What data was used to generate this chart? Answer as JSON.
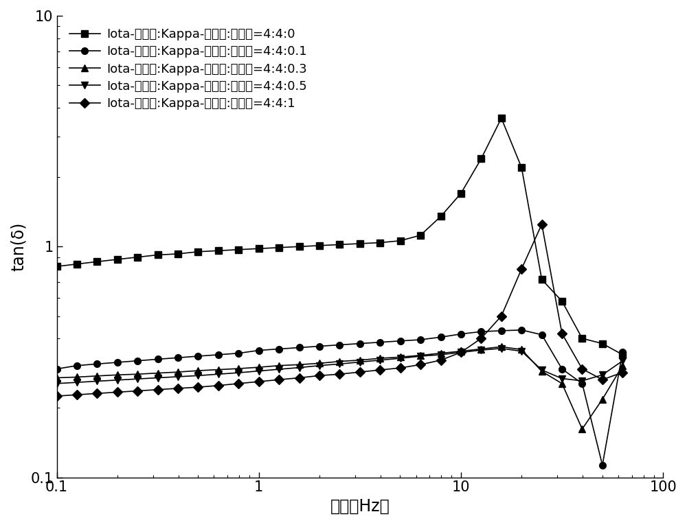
{
  "title": "",
  "xlabel": "频率（Hz）",
  "ylabel": "tan(δ)",
  "xlim": [
    0.1,
    100
  ],
  "ylim": [
    0.1,
    10
  ],
  "legend_labels": [
    "Iota-卡拉胶:Kappa-卡拉胶:丙氨酸=4:4:0",
    "Iota-卡拉胶:Kappa-卡拉胶:丙氨酸=4:4:0.1",
    "Iota-卡拉胶:Kappa-卡拉胶:丙氨酸=4:4:0.3",
    "Iota-卡拉胶:Kappa-卡拉胶:丙氨酸=4:4:0.5",
    "Iota-卡拉胶:Kappa-卡拉胶:丙氨酸=4:4:1"
  ],
  "series": {
    "s0": {
      "x": [
        0.1,
        0.126,
        0.158,
        0.2,
        0.251,
        0.316,
        0.398,
        0.501,
        0.631,
        0.794,
        1.0,
        1.259,
        1.585,
        1.995,
        2.512,
        3.162,
        3.981,
        5.012,
        6.31,
        7.943,
        10.0,
        12.589,
        15.849,
        19.953,
        25.119,
        31.623,
        39.811,
        50.119,
        63.096
      ],
      "y": [
        0.82,
        0.84,
        0.86,
        0.88,
        0.9,
        0.92,
        0.93,
        0.95,
        0.96,
        0.97,
        0.98,
        0.99,
        1.0,
        1.01,
        1.02,
        1.03,
        1.04,
        1.06,
        1.12,
        1.35,
        1.7,
        2.4,
        3.6,
        2.2,
        0.72,
        0.58,
        0.4,
        0.38,
        0.34
      ],
      "marker": "s",
      "color": "black",
      "label": "Iota-卡拉胶:Kappa-卡拉胶:丙氨酸=4:4:0"
    },
    "s1": {
      "x": [
        0.1,
        0.126,
        0.158,
        0.2,
        0.251,
        0.316,
        0.398,
        0.501,
        0.631,
        0.794,
        1.0,
        1.259,
        1.585,
        1.995,
        2.512,
        3.162,
        3.981,
        5.012,
        6.31,
        7.943,
        10.0,
        12.589,
        15.849,
        19.953,
        25.119,
        31.623,
        39.811,
        50.119,
        63.096
      ],
      "y": [
        0.295,
        0.305,
        0.31,
        0.315,
        0.32,
        0.325,
        0.33,
        0.335,
        0.34,
        0.345,
        0.355,
        0.36,
        0.365,
        0.37,
        0.375,
        0.38,
        0.385,
        0.39,
        0.395,
        0.405,
        0.418,
        0.428,
        0.432,
        0.435,
        0.415,
        0.295,
        0.255,
        0.113,
        0.35
      ],
      "marker": "o",
      "color": "black",
      "label": "Iota-卡拉胶:Kappa-卡拉胶:丙氨酸=4:4:0.1"
    },
    "s2": {
      "x": [
        0.1,
        0.126,
        0.158,
        0.2,
        0.251,
        0.316,
        0.398,
        0.501,
        0.631,
        0.794,
        1.0,
        1.259,
        1.585,
        1.995,
        2.512,
        3.162,
        3.981,
        5.012,
        6.31,
        7.943,
        10.0,
        12.589,
        15.849,
        19.953,
        25.119,
        31.623,
        39.811,
        50.119,
        63.096
      ],
      "y": [
        0.27,
        0.272,
        0.275,
        0.278,
        0.28,
        0.283,
        0.286,
        0.29,
        0.293,
        0.296,
        0.3,
        0.305,
        0.308,
        0.312,
        0.318,
        0.322,
        0.328,
        0.332,
        0.338,
        0.345,
        0.352,
        0.36,
        0.368,
        0.358,
        0.288,
        0.255,
        0.162,
        0.218,
        0.305
      ],
      "marker": "^",
      "color": "black",
      "label": "Iota-卡拉胶:Kappa-卡拉胶:丙氨酸=4:4:0.3"
    },
    "s3": {
      "x": [
        0.1,
        0.126,
        0.158,
        0.2,
        0.251,
        0.316,
        0.398,
        0.501,
        0.631,
        0.794,
        1.0,
        1.259,
        1.585,
        1.995,
        2.512,
        3.162,
        3.981,
        5.012,
        6.31,
        7.943,
        10.0,
        12.589,
        15.849,
        19.953,
        25.119,
        31.623,
        39.811,
        50.119,
        63.096
      ],
      "y": [
        0.255,
        0.258,
        0.261,
        0.264,
        0.267,
        0.27,
        0.273,
        0.276,
        0.28,
        0.284,
        0.289,
        0.294,
        0.299,
        0.305,
        0.31,
        0.316,
        0.322,
        0.328,
        0.335,
        0.34,
        0.348,
        0.356,
        0.362,
        0.352,
        0.292,
        0.268,
        0.262,
        0.278,
        0.32
      ],
      "marker": "v",
      "color": "black",
      "label": "Iota-卡拉胶:Kappa-卡拉胶:丙氨酸=4:4:0.5"
    },
    "s4": {
      "x": [
        0.1,
        0.126,
        0.158,
        0.2,
        0.251,
        0.316,
        0.398,
        0.501,
        0.631,
        0.794,
        1.0,
        1.259,
        1.585,
        1.995,
        2.512,
        3.162,
        3.981,
        5.012,
        6.31,
        7.943,
        10.0,
        12.589,
        15.849,
        19.953,
        25.119,
        31.623,
        39.811,
        50.119,
        63.096
      ],
      "y": [
        0.225,
        0.228,
        0.231,
        0.234,
        0.237,
        0.24,
        0.243,
        0.246,
        0.25,
        0.255,
        0.26,
        0.265,
        0.27,
        0.276,
        0.28,
        0.286,
        0.292,
        0.298,
        0.308,
        0.322,
        0.348,
        0.4,
        0.5,
        0.8,
        1.25,
        0.42,
        0.295,
        0.265,
        0.285
      ],
      "marker": "D",
      "color": "black",
      "label": "Iota-卡拉胶:Kappa-卡拉胶:丙氨酸=4:4:1"
    }
  },
  "background_color": "#ffffff",
  "line_color": "black",
  "linewidth": 1.2,
  "markersize": 7,
  "tick_fontsize": 15,
  "label_fontsize": 17,
  "legend_fontsize": 13
}
